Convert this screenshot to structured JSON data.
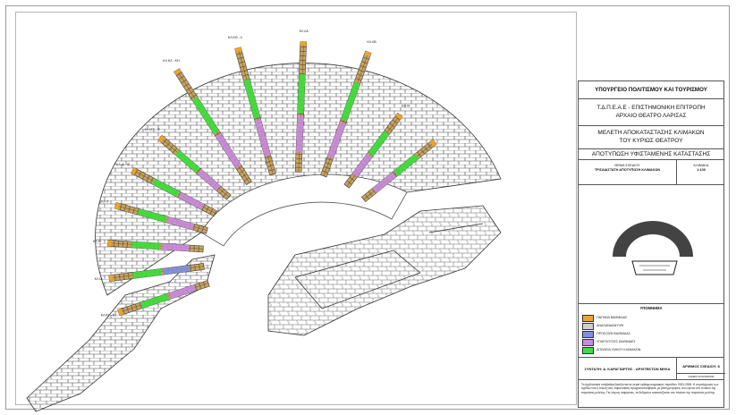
{
  "title_block": {
    "ministry": "ΥΠΟΥΡΓΕΙΟ ΠΟΛΙΤΙΣΜΟΥ ΚΑΙ ΤΟΥΡΙΣΜΟΥ",
    "committee_line1": "Τ.Δ.Π.Ε.Α.Ε - ΕΠΙΣΤΗΜΟΝΙΚΗ ΕΠΙΤΡΟΠΗ",
    "committee_line2": "ΑΡΧΑΙΟ ΘΕΑΤΡΟ ΛΑΡΙΣΑΣ",
    "study_line1": "ΜΕΛΕΤΗ ΑΠΟΚΑΤΑΣΤΑΣΗΣ ΚΛΙΜΑΚΩΝ",
    "study_line2": "ΤΟΥ ΚΥΡΙΩΣ ΘΕΑΤΡΟΥ",
    "survey_title": "ΑΠΟΤΥΠΩΣΗ ΥΦΙΣΤΑΜΕΝΗΣ ΚΑΤΑΣΤΑΣΗΣ",
    "drawing_subject_label": "ΘΕΜΑ ΣΧΕΔΙΟΥ",
    "drawing_subject": "ΤΡΙΣΔΙΑΣΤΑΤΗ ΑΠΟΤΥΠΩΣΗ ΚΛΙΜΑΚΩΝ",
    "scale_label": "ΚΛΙΜΑΚΑ",
    "scale_value": "1:100",
    "legend_title": "ΥΠΟΜΝΗΜΑ",
    "author": "ΣΥΝΤΑΞΗ: Δ. ΚΑΡΑΓΙΩΡΓΗΣ - ΑΡΧΙΤΕΚΤΩΝ ΜΗΧΑ",
    "drawing_number": "ΑΡΙΘΜΟΣ ΣΧΕΔΙΟΥ: 8",
    "drawing_code": "ΛΑΘ/ΕΠΙ-ΚΛ/ΑΠ/2018/01",
    "notes": "Τα σχεδιαστικά υπόβαθρα βασίζονται σε σειρά ορθοφωτογραφιών περιόδου 2003-2008. Η συμπλήρωση των σχεδίων και η τελική τους παρουσίαση πραγματοποιήθηκαν με βάση μετρήσεις που έγιναν στο πλαίσιο της παρούσας μελέτης. Για λόγους σαφήνειας, τα δεδομένα απεικονίζονται στο πλαίσιο της παρούσας μελέτης."
  },
  "legend": [
    {
      "label": "ΠΑΤΗΜΑ ΒΑΘΜΙΔΑΣ",
      "color": "#f2a227"
    },
    {
      "label": "ΑΝΑΛΑΝΔΑΝΥΨΗ",
      "color": "#cfcfcf"
    },
    {
      "label": "ΠΡΟΣΟΨΗ ΒΑΘΜΙΔΑΣ",
      "color": "#7d8fe8"
    },
    {
      "label": "ΥΠΑΡΧΟΥΣΕΣ ΒΑΘΜΙΔΕΣ",
      "color": "#c98ae6"
    },
    {
      "label": "ΑΠΩΛΕΙΑ ΥΛΙΚΟΥ ΚΛΙΜΑΚΩΝ",
      "color": "#3be03b"
    }
  ],
  "stair_labels": [
    "ΚΛ Α1 - Β1",
    "ΚΛ ΙΑ",
    "ΚΛ ΙΒ",
    "ΚΛ ΙΓ",
    "ΚΛ ΙΔ - ΙΕ",
    "ΚΛ ΙΣΤ - ΙΖ",
    "ΚΛ ΚΖ - ΚΗ",
    "ΚΛ ΚΘ - Λ",
    "ΚΛ ΛΑ",
    "ΚΛ ΛΒ",
    "ΚΛ ΛΓ"
  ]
}
